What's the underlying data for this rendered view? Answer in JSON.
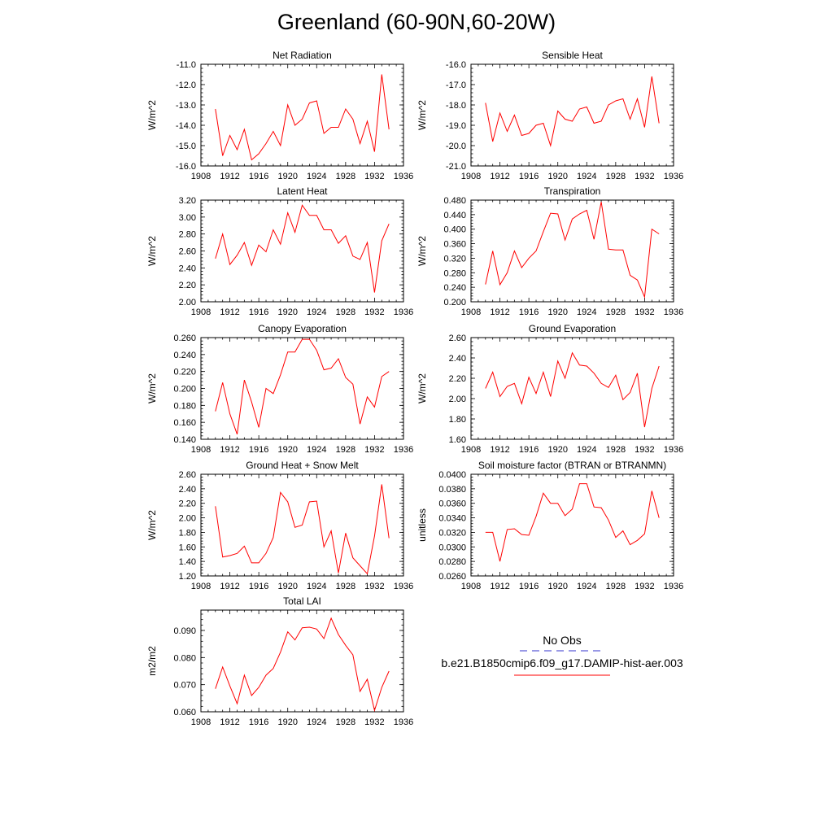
{
  "title": "Greenland (60-90N,60-20W)",
  "legend": {
    "items": [
      {
        "label": "No Obs",
        "color": "#3333cc",
        "dash": true
      },
      {
        "label": "b.e21.B1850cmip6.f09_g17.DAMIP-hist-aer.003",
        "color": "#ff0000",
        "dash": false
      }
    ]
  },
  "chart_data": [
    {
      "type": "line",
      "title": "Net Radiation",
      "xlabel": "",
      "ylabel": "W/m^2",
      "xlim": [
        1908,
        1936
      ],
      "ylim": [
        -16.0,
        -11.0
      ],
      "xticks": [
        1908,
        1912,
        1916,
        1920,
        1924,
        1928,
        1932,
        1936
      ],
      "yticks": [
        "-16.0",
        "-15.0",
        "-14.0",
        "-13.0",
        "-12.0",
        "-11.0"
      ],
      "series": [
        {
          "color": "#ff0000",
          "x": [
            1910,
            1911,
            1912,
            1913,
            1914,
            1915,
            1916,
            1917,
            1918,
            1919,
            1920,
            1921,
            1922,
            1923,
            1924,
            1925,
            1926,
            1927,
            1928,
            1929,
            1930,
            1931,
            1932,
            1933,
            1934
          ],
          "y": [
            -13.2,
            -15.5,
            -14.5,
            -15.2,
            -14.2,
            -15.7,
            -15.4,
            -14.9,
            -14.3,
            -15.0,
            -13.0,
            -14.0,
            -13.7,
            -12.9,
            -12.8,
            -14.4,
            -14.1,
            -14.1,
            -13.2,
            -13.7,
            -14.9,
            -13.8,
            -15.3,
            -11.5,
            -14.2
          ]
        }
      ]
    },
    {
      "type": "line",
      "title": "Sensible Heat",
      "xlabel": "",
      "ylabel": "W/m^2",
      "xlim": [
        1908,
        1936
      ],
      "ylim": [
        -21.0,
        -16.0
      ],
      "xticks": [
        1908,
        1912,
        1916,
        1920,
        1924,
        1928,
        1932,
        1936
      ],
      "yticks": [
        "-21.0",
        "-20.0",
        "-19.0",
        "-18.0",
        "-17.0",
        "-16.0"
      ],
      "series": [
        {
          "color": "#ff0000",
          "x": [
            1910,
            1911,
            1912,
            1913,
            1914,
            1915,
            1916,
            1917,
            1918,
            1919,
            1920,
            1921,
            1922,
            1923,
            1924,
            1925,
            1926,
            1927,
            1928,
            1929,
            1930,
            1931,
            1932,
            1933,
            1934
          ],
          "y": [
            -17.9,
            -19.8,
            -18.4,
            -19.3,
            -18.5,
            -19.5,
            -19.4,
            -19.0,
            -18.9,
            -20.0,
            -18.3,
            -18.7,
            -18.8,
            -18.2,
            -18.1,
            -18.9,
            -18.8,
            -18.0,
            -17.8,
            -17.7,
            -18.7,
            -17.7,
            -19.1,
            -16.6,
            -18.9
          ]
        }
      ]
    },
    {
      "type": "line",
      "title": "Latent Heat",
      "xlabel": "",
      "ylabel": "W/m^2",
      "xlim": [
        1908,
        1936
      ],
      "ylim": [
        2.0,
        3.2
      ],
      "xticks": [
        1908,
        1912,
        1916,
        1920,
        1924,
        1928,
        1932,
        1936
      ],
      "yticks": [
        "2.00",
        "2.20",
        "2.40",
        "2.60",
        "2.80",
        "3.00",
        "3.20"
      ],
      "series": [
        {
          "color": "#ff0000",
          "x": [
            1910,
            1911,
            1912,
            1913,
            1914,
            1915,
            1916,
            1917,
            1918,
            1919,
            1920,
            1921,
            1922,
            1923,
            1924,
            1925,
            1926,
            1927,
            1928,
            1929,
            1930,
            1931,
            1932,
            1933,
            1934
          ],
          "y": [
            2.51,
            2.8,
            2.44,
            2.55,
            2.7,
            2.43,
            2.67,
            2.59,
            2.85,
            2.68,
            3.05,
            2.82,
            3.14,
            3.02,
            3.02,
            2.85,
            2.85,
            2.69,
            2.78,
            2.54,
            2.5,
            2.7,
            2.11,
            2.72,
            2.92
          ]
        }
      ]
    },
    {
      "type": "line",
      "title": "Transpiration",
      "xlabel": "",
      "ylabel": "W/m^2",
      "xlim": [
        1908,
        1936
      ],
      "ylim": [
        0.2,
        0.48
      ],
      "xticks": [
        1908,
        1912,
        1916,
        1920,
        1924,
        1928,
        1932,
        1936
      ],
      "yticks": [
        "0.200",
        "0.240",
        "0.280",
        "0.320",
        "0.360",
        "0.400",
        "0.440",
        "0.480"
      ],
      "series": [
        {
          "color": "#ff0000",
          "x": [
            1910,
            1911,
            1912,
            1913,
            1914,
            1915,
            1916,
            1917,
            1918,
            1919,
            1920,
            1921,
            1922,
            1923,
            1924,
            1925,
            1926,
            1927,
            1928,
            1929,
            1930,
            1931,
            1932,
            1933,
            1934
          ],
          "y": [
            0.248,
            0.34,
            0.247,
            0.28,
            0.34,
            0.294,
            0.32,
            0.34,
            0.393,
            0.444,
            0.442,
            0.37,
            0.428,
            0.442,
            0.452,
            0.372,
            0.475,
            0.345,
            0.343,
            0.343,
            0.273,
            0.26,
            0.213,
            0.4,
            0.387
          ]
        }
      ]
    },
    {
      "type": "line",
      "title": "Canopy Evaporation",
      "xlabel": "",
      "ylabel": "W/m^2",
      "xlim": [
        1908,
        1936
      ],
      "ylim": [
        0.14,
        0.26
      ],
      "xticks": [
        1908,
        1912,
        1916,
        1920,
        1924,
        1928,
        1932,
        1936
      ],
      "yticks": [
        "0.140",
        "0.160",
        "0.180",
        "0.200",
        "0.220",
        "0.240",
        "0.260"
      ],
      "series": [
        {
          "color": "#ff0000",
          "x": [
            1910,
            1911,
            1912,
            1913,
            1914,
            1915,
            1916,
            1917,
            1918,
            1919,
            1920,
            1921,
            1922,
            1923,
            1924,
            1925,
            1926,
            1927,
            1928,
            1929,
            1930,
            1931,
            1932,
            1933,
            1934
          ],
          "y": [
            0.173,
            0.207,
            0.17,
            0.146,
            0.21,
            0.184,
            0.154,
            0.2,
            0.194,
            0.216,
            0.243,
            0.243,
            0.258,
            0.258,
            0.245,
            0.222,
            0.224,
            0.235,
            0.213,
            0.205,
            0.158,
            0.19,
            0.178,
            0.214,
            0.22
          ]
        }
      ]
    },
    {
      "type": "line",
      "title": "Ground Evaporation",
      "xlabel": "",
      "ylabel": "W/m^2",
      "xlim": [
        1908,
        1936
      ],
      "ylim": [
        1.6,
        2.6
      ],
      "xticks": [
        1908,
        1912,
        1916,
        1920,
        1924,
        1928,
        1932,
        1936
      ],
      "yticks": [
        "1.60",
        "1.80",
        "2.00",
        "2.20",
        "2.40",
        "2.60"
      ],
      "series": [
        {
          "color": "#ff0000",
          "x": [
            1910,
            1911,
            1912,
            1913,
            1914,
            1915,
            1916,
            1917,
            1918,
            1919,
            1920,
            1921,
            1922,
            1923,
            1924,
            1925,
            1926,
            1927,
            1928,
            1929,
            1930,
            1931,
            1932,
            1933,
            1934
          ],
          "y": [
            2.1,
            2.26,
            2.02,
            2.12,
            2.15,
            1.95,
            2.21,
            2.05,
            2.26,
            2.02,
            2.37,
            2.2,
            2.45,
            2.33,
            2.32,
            2.25,
            2.15,
            2.11,
            2.23,
            1.99,
            2.06,
            2.25,
            1.72,
            2.1,
            2.32
          ]
        }
      ]
    },
    {
      "type": "line",
      "title": "Ground Heat + Snow Melt",
      "xlabel": "",
      "ylabel": "W/m^2",
      "xlim": [
        1908,
        1936
      ],
      "ylim": [
        1.2,
        2.6
      ],
      "xticks": [
        1908,
        1912,
        1916,
        1920,
        1924,
        1928,
        1932,
        1936
      ],
      "yticks": [
        "1.20",
        "1.40",
        "1.60",
        "1.80",
        "2.00",
        "2.20",
        "2.40",
        "2.60"
      ],
      "series": [
        {
          "color": "#ff0000",
          "x": [
            1910,
            1911,
            1912,
            1913,
            1914,
            1915,
            1916,
            1917,
            1918,
            1919,
            1920,
            1921,
            1922,
            1923,
            1924,
            1925,
            1926,
            1927,
            1928,
            1929,
            1930,
            1931,
            1932,
            1933,
            1934
          ],
          "y": [
            2.16,
            1.46,
            1.48,
            1.51,
            1.61,
            1.38,
            1.38,
            1.51,
            1.73,
            2.35,
            2.22,
            1.87,
            1.9,
            2.22,
            2.23,
            1.6,
            1.82,
            1.24,
            1.79,
            1.45,
            1.34,
            1.23,
            1.75,
            2.46,
            1.72
          ]
        }
      ]
    },
    {
      "type": "line",
      "title": "Soil moisture factor (BTRAN or BTRANMN)",
      "xlabel": "",
      "ylabel": "unitless",
      "xlim": [
        1908,
        1936
      ],
      "ylim": [
        0.026,
        0.04
      ],
      "xticks": [
        1908,
        1912,
        1916,
        1920,
        1924,
        1928,
        1932,
        1936
      ],
      "yticks": [
        "0.0260",
        "0.0280",
        "0.0300",
        "0.0320",
        "0.0340",
        "0.0360",
        "0.0380",
        "0.0400"
      ],
      "series": [
        {
          "color": "#ff0000",
          "x": [
            1910,
            1911,
            1912,
            1913,
            1914,
            1915,
            1916,
            1917,
            1918,
            1919,
            1920,
            1921,
            1922,
            1923,
            1924,
            1925,
            1926,
            1927,
            1928,
            1929,
            1930,
            1931,
            1932,
            1933,
            1934
          ],
          "y": [
            0.032,
            0.032,
            0.028,
            0.0324,
            0.0325,
            0.0317,
            0.0316,
            0.0342,
            0.0374,
            0.036,
            0.036,
            0.0343,
            0.0352,
            0.0387,
            0.0387,
            0.0355,
            0.0354,
            0.0337,
            0.0313,
            0.0322,
            0.0303,
            0.0309,
            0.0318,
            0.0377,
            0.034
          ]
        }
      ]
    },
    {
      "type": "line",
      "title": "Total LAI",
      "xlabel": "",
      "ylabel": "m2/m2",
      "xlim": [
        1908,
        1936
      ],
      "ylim": [
        0.06,
        0.0975
      ],
      "xticks": [
        1908,
        1912,
        1916,
        1920,
        1924,
        1928,
        1932,
        1936
      ],
      "yticks": [
        "0.060",
        "0.070",
        "0.080",
        "0.090"
      ],
      "series": [
        {
          "color": "#ff0000",
          "x": [
            1910,
            1911,
            1912,
            1913,
            1914,
            1915,
            1916,
            1917,
            1918,
            1919,
            1920,
            1921,
            1922,
            1923,
            1924,
            1925,
            1926,
            1927,
            1928,
            1929,
            1930,
            1931,
            1932,
            1933,
            1934
          ],
          "y": [
            0.0685,
            0.0765,
            0.0695,
            0.063,
            0.0735,
            0.066,
            0.069,
            0.0735,
            0.076,
            0.082,
            0.0895,
            0.0865,
            0.091,
            0.0912,
            0.0905,
            0.087,
            0.0945,
            0.0885,
            0.0845,
            0.081,
            0.0675,
            0.072,
            0.0605,
            0.069,
            0.075
          ]
        }
      ]
    }
  ]
}
